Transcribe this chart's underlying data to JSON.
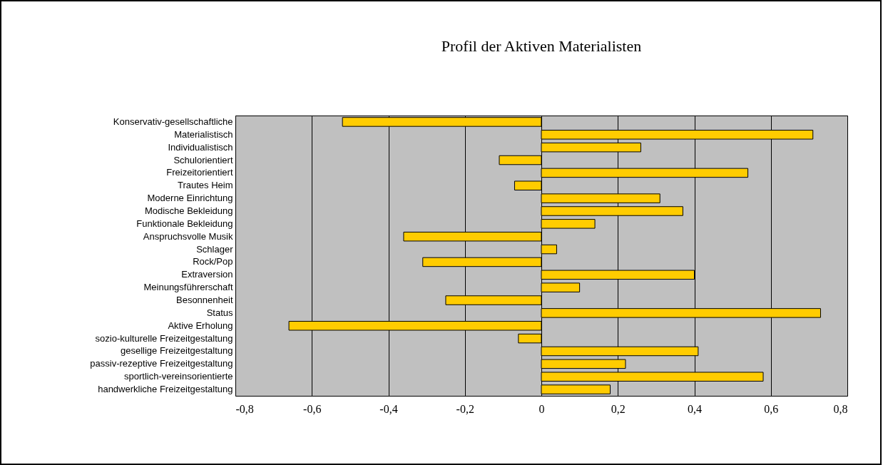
{
  "chart_data": {
    "type": "bar",
    "orientation": "horizontal",
    "title": "Profil der Aktiven Materialisten",
    "categories": [
      "Konservativ-gesellschaftliche",
      "Materialistisch",
      "Individualistisch",
      "Schulorientiert",
      "Freizeitorientiert",
      "Trautes Heim",
      "Moderne Einrichtung",
      "Modische Bekleidung",
      "Funktionale Bekleidung",
      "Anspruchsvolle Musik",
      "Schlager",
      "Rock/Pop",
      "Extraversion",
      "Meinungsführerschaft",
      "Besonnenheit",
      "Status",
      "Aktive Erholung",
      "sozio-kulturelle Freizeitgestaltung",
      "gesellige Freizeitgestaltung",
      "passiv-rezeptive Freizeitgestaltung",
      "sportlich-vereinsorientierte",
      "handwerkliche Freizeitgestaltung"
    ],
    "values": [
      -0.52,
      0.71,
      0.26,
      -0.11,
      0.54,
      -0.07,
      0.31,
      0.37,
      0.14,
      -0.36,
      0.04,
      -0.31,
      0.4,
      0.1,
      -0.25,
      0.73,
      -0.66,
      -0.06,
      0.41,
      0.22,
      0.58,
      0.18
    ],
    "color": "#ffcc00",
    "xlim": [
      -0.8,
      0.8
    ],
    "xticks": [
      {
        "value": -0.8,
        "label": "-0,8"
      },
      {
        "value": -0.6,
        "label": "-0,6"
      },
      {
        "value": -0.4,
        "label": "-0,4"
      },
      {
        "value": -0.2,
        "label": "-0,2"
      },
      0,
      {
        "value": 0.2,
        "label": "0,2"
      },
      {
        "value": 0.4,
        "label": "0,4"
      },
      {
        "value": 0.6,
        "label": "0,6"
      },
      {
        "value": 0.8,
        "label": "0,8"
      }
    ],
    "grid": "x"
  }
}
